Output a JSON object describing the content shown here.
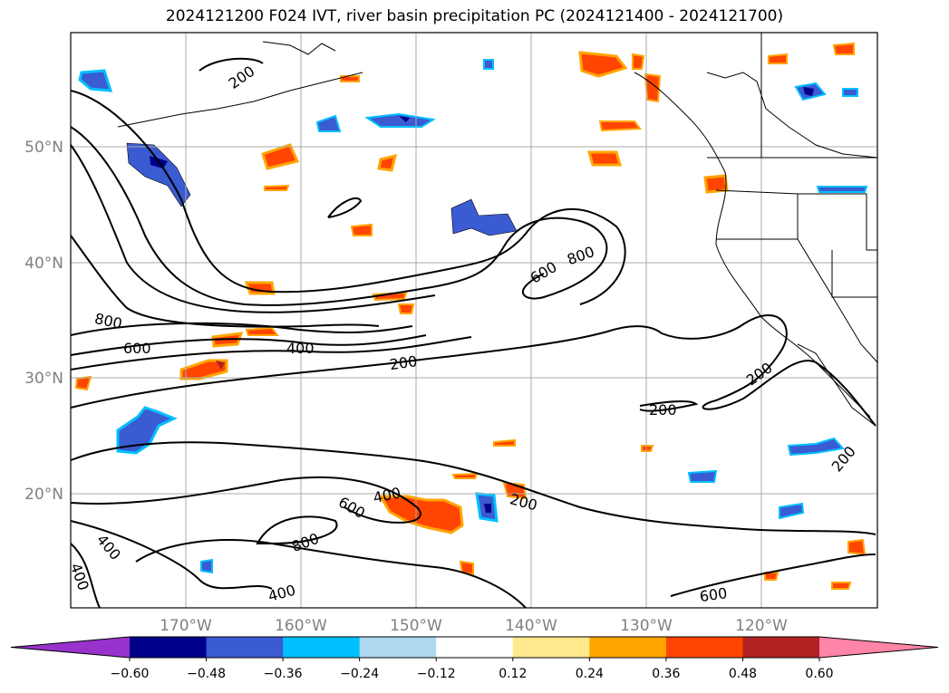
{
  "title": "2024121200 F024 IVT, river basin precipitation PC (2024121400 - 2024121700)",
  "lon_labels": [
    "170°W",
    "160°W",
    "150°W",
    "140°W",
    "130°W",
    "120°W"
  ],
  "lat_labels": [
    "50°N",
    "40°N",
    "30°N",
    "20°N"
  ],
  "contour_labels": [
    "200",
    "800",
    "600",
    "400",
    "200",
    "600",
    "800",
    "200",
    "200",
    "200",
    "400",
    "800",
    "600",
    "400",
    "400",
    "400",
    "200",
    "600"
  ],
  "colorbar": {
    "ticks": [
      "−0.60",
      "−0.48",
      "−0.36",
      "−0.24",
      "−0.12",
      "0.12",
      "0.24",
      "0.36",
      "0.48",
      "0.60"
    ],
    "colors": [
      "#9932cc",
      "#00008b",
      "#3a5bd1",
      "#00bfff",
      "#add8f0",
      "#ffffff",
      "#ffe98c",
      "#ffa500",
      "#ff4500",
      "#b22222",
      "#ff85a8"
    ]
  }
}
